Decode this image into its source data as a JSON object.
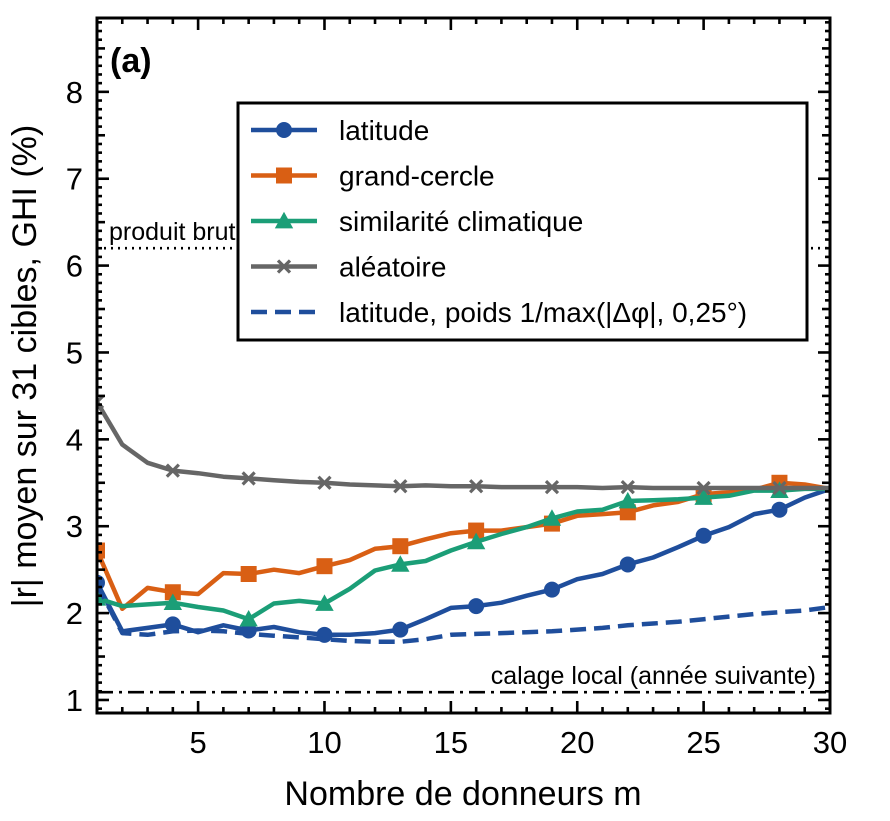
{
  "chart_data": {
    "type": "line",
    "panel_label": "(a)",
    "xlabel": "Nombre de donneurs m",
    "ylabel": "|r| moyen sur 31 cibles, GHI (%)",
    "xlim": [
      1,
      30
    ],
    "ylim": [
      0.85,
      8.85
    ],
    "xticks": [
      5,
      10,
      15,
      20,
      25,
      30
    ],
    "yticks": [
      1,
      2,
      3,
      4,
      5,
      6,
      7,
      8
    ],
    "grid": false,
    "legend_position": "top-right",
    "series": [
      {
        "name": "latitude",
        "color": "#1f4e9c",
        "marker": "circle",
        "line": "solid",
        "marker_every_from": 1,
        "marker_step": 3,
        "x": [
          1,
          2,
          3,
          4,
          5,
          6,
          7,
          8,
          9,
          10,
          11,
          12,
          13,
          14,
          15,
          16,
          17,
          18,
          19,
          20,
          21,
          22,
          23,
          24,
          25,
          26,
          27,
          28,
          29,
          30
        ],
        "y": [
          2.35,
          1.79,
          1.83,
          1.87,
          1.78,
          1.86,
          1.8,
          1.84,
          1.78,
          1.75,
          1.75,
          1.77,
          1.81,
          1.93,
          2.06,
          2.08,
          2.12,
          2.2,
          2.27,
          2.39,
          2.45,
          2.56,
          2.64,
          2.76,
          2.89,
          2.99,
          3.14,
          3.19,
          3.33,
          3.43
        ]
      },
      {
        "name": "grand-cercle",
        "color": "#d95f14",
        "marker": "square",
        "line": "solid",
        "marker_every_from": 1,
        "marker_step": 3,
        "x": [
          1,
          2,
          3,
          4,
          5,
          6,
          7,
          8,
          9,
          10,
          11,
          12,
          13,
          14,
          15,
          16,
          17,
          18,
          19,
          20,
          21,
          22,
          23,
          24,
          25,
          26,
          27,
          28,
          29,
          30
        ],
        "y": [
          2.72,
          2.05,
          2.29,
          2.24,
          2.22,
          2.46,
          2.45,
          2.5,
          2.46,
          2.54,
          2.61,
          2.74,
          2.77,
          2.85,
          2.92,
          2.95,
          2.95,
          2.99,
          3.03,
          3.12,
          3.14,
          3.16,
          3.24,
          3.28,
          3.37,
          3.39,
          3.42,
          3.5,
          3.48,
          3.43
        ]
      },
      {
        "name": "similarité climatique",
        "color": "#1b9e77",
        "marker": "triangle",
        "line": "solid",
        "marker_every_from": 1,
        "marker_step": 3,
        "x": [
          1,
          2,
          3,
          4,
          5,
          6,
          7,
          8,
          9,
          10,
          11,
          12,
          13,
          14,
          15,
          16,
          17,
          18,
          19,
          20,
          21,
          22,
          23,
          24,
          25,
          26,
          27,
          28,
          29,
          30
        ],
        "y": [
          2.17,
          2.08,
          2.1,
          2.12,
          2.07,
          2.03,
          1.93,
          2.11,
          2.14,
          2.11,
          2.28,
          2.49,
          2.56,
          2.6,
          2.72,
          2.82,
          2.91,
          2.99,
          3.09,
          3.17,
          3.19,
          3.29,
          3.3,
          3.31,
          3.33,
          3.35,
          3.41,
          3.41,
          3.43,
          3.43
        ]
      },
      {
        "name": "aléatoire",
        "color": "#666666",
        "marker": "x",
        "line": "solid",
        "marker_every_from": 1,
        "marker_step": 3,
        "x": [
          1,
          2,
          3,
          4,
          5,
          6,
          7,
          8,
          9,
          10,
          11,
          12,
          13,
          14,
          15,
          16,
          17,
          18,
          19,
          20,
          21,
          22,
          23,
          24,
          25,
          26,
          27,
          28,
          29,
          30
        ],
        "y": [
          4.43,
          3.94,
          3.73,
          3.64,
          3.61,
          3.57,
          3.55,
          3.53,
          3.51,
          3.5,
          3.48,
          3.47,
          3.46,
          3.47,
          3.46,
          3.46,
          3.45,
          3.45,
          3.45,
          3.45,
          3.44,
          3.45,
          3.44,
          3.44,
          3.44,
          3.44,
          3.44,
          3.44,
          3.44,
          3.44
        ]
      },
      {
        "name": "latitude, poids 1/max(|Δφ|, 0,25°)",
        "color": "#1f4e9c",
        "marker": "none",
        "line": "dashed",
        "x": [
          1,
          2,
          3,
          4,
          5,
          6,
          7,
          8,
          9,
          10,
          11,
          12,
          13,
          14,
          15,
          16,
          17,
          18,
          19,
          20,
          21,
          22,
          23,
          24,
          25,
          26,
          27,
          28,
          29,
          30
        ],
        "y": [
          2.33,
          1.77,
          1.75,
          1.79,
          1.8,
          1.79,
          1.76,
          1.74,
          1.72,
          1.7,
          1.68,
          1.67,
          1.67,
          1.7,
          1.75,
          1.76,
          1.77,
          1.78,
          1.79,
          1.81,
          1.83,
          1.86,
          1.88,
          1.9,
          1.93,
          1.96,
          1.99,
          2.01,
          2.03,
          2.07
        ]
      }
    ],
    "reference_lines": [
      {
        "label": "produit brut",
        "y": 6.2,
        "style": "dotted",
        "color": "#000000",
        "label_anchor": "left"
      },
      {
        "label": "calage local (année suivante)",
        "y": 1.09,
        "style": "dashdot",
        "color": "#000000",
        "label_anchor": "right"
      }
    ]
  }
}
